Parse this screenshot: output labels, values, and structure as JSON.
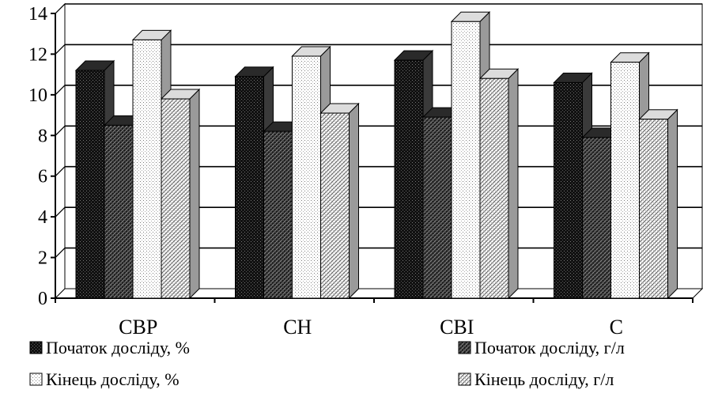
{
  "chart_data": {
    "type": "bar",
    "categories": [
      "СВР",
      "СН",
      "СВІ",
      "С"
    ],
    "series": [
      {
        "name": "Початок досліду, %",
        "values": [
          11.2,
          10.9,
          11.7,
          10.6
        ],
        "pattern": "dark-grid"
      },
      {
        "name": "Початок досліду, г/л",
        "values": [
          8.5,
          8.2,
          8.9,
          7.9
        ],
        "pattern": "dark-hatch"
      },
      {
        "name": "Кінець досліду, %",
        "values": [
          12.7,
          11.9,
          13.6,
          11.6
        ],
        "pattern": "light-dots"
      },
      {
        "name": "Кінець досліду, г/л",
        "values": [
          9.8,
          9.1,
          10.8,
          8.8
        ],
        "pattern": "light-hatch"
      }
    ],
    "ylim": [
      0,
      14
    ],
    "yticks": [
      0,
      2,
      4,
      6,
      8,
      10,
      12,
      14
    ],
    "grid": true,
    "style": "3d-column",
    "legend_position": "bottom",
    "colors": {
      "dark_fill": "#1a1a1a",
      "light_fill": "#f5f5f5",
      "side_dark": "#3a3a3a",
      "side_light": "#9a9a9a",
      "grid": "#000000",
      "wall": "#ffffff"
    }
  }
}
